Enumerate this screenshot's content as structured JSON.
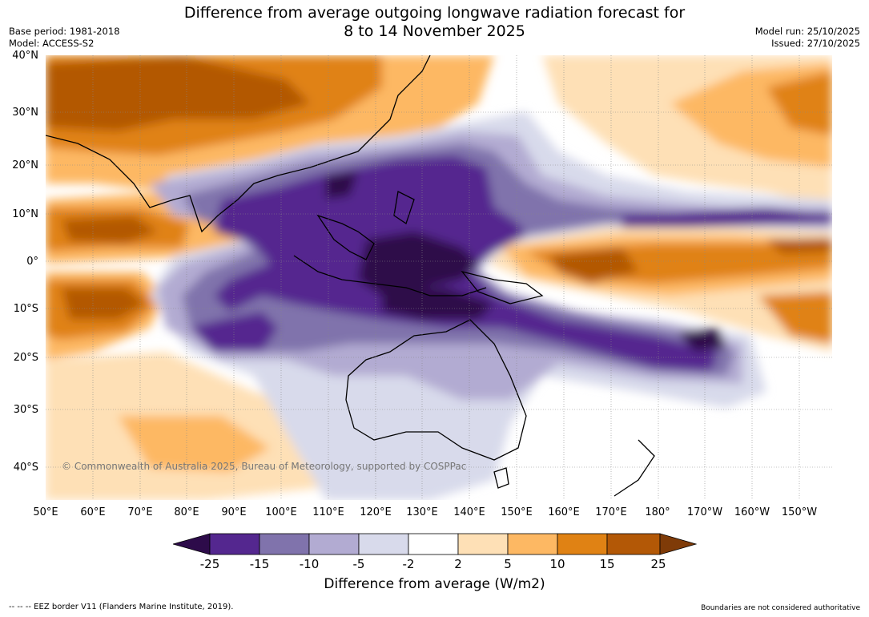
{
  "title": {
    "line1": "Difference from average outgoing longwave radiation forecast for",
    "line2": "8 to 14 November 2025"
  },
  "meta": {
    "base_period": "Base period: 1981-2018",
    "model": "Model: ACCESS-S2",
    "model_run": "Model run: 25/10/2025",
    "issued": "Issued: 27/10/2025"
  },
  "axes": {
    "lat_labels": [
      "40°N",
      "30°N",
      "20°N",
      "10°N",
      "0°",
      "10°S",
      "20°S",
      "30°S",
      "40°S"
    ],
    "lon_labels": [
      "50°E",
      "60°E",
      "70°E",
      "80°E",
      "90°E",
      "100°E",
      "110°E",
      "120°E",
      "130°E",
      "140°E",
      "150°E",
      "160°E",
      "170°E",
      "180°",
      "170°W",
      "160°W",
      "150°W"
    ]
  },
  "copyright": "© Commonwealth of Australia 2025, Bureau of Meteorology, supported by COSPPac",
  "colorbar": {
    "ticks": [
      "-25",
      "-15",
      "-10",
      "-5",
      "-2",
      "2",
      "5",
      "10",
      "15",
      "25"
    ],
    "colors": [
      "#2d0b4a",
      "#54278f",
      "#8073ac",
      "#b2abd2",
      "#d8daeb",
      "#ffffff",
      "#fee0b6",
      "#fdb863",
      "#e08214",
      "#b35806",
      "#7f3b08"
    ],
    "title": "Difference from average (W/m2)"
  },
  "footer": {
    "left": "--  --  -- EEZ border V11 (Flanders Marine Institute, 2019).",
    "right": "Boundaries are not considered authoritative"
  }
}
